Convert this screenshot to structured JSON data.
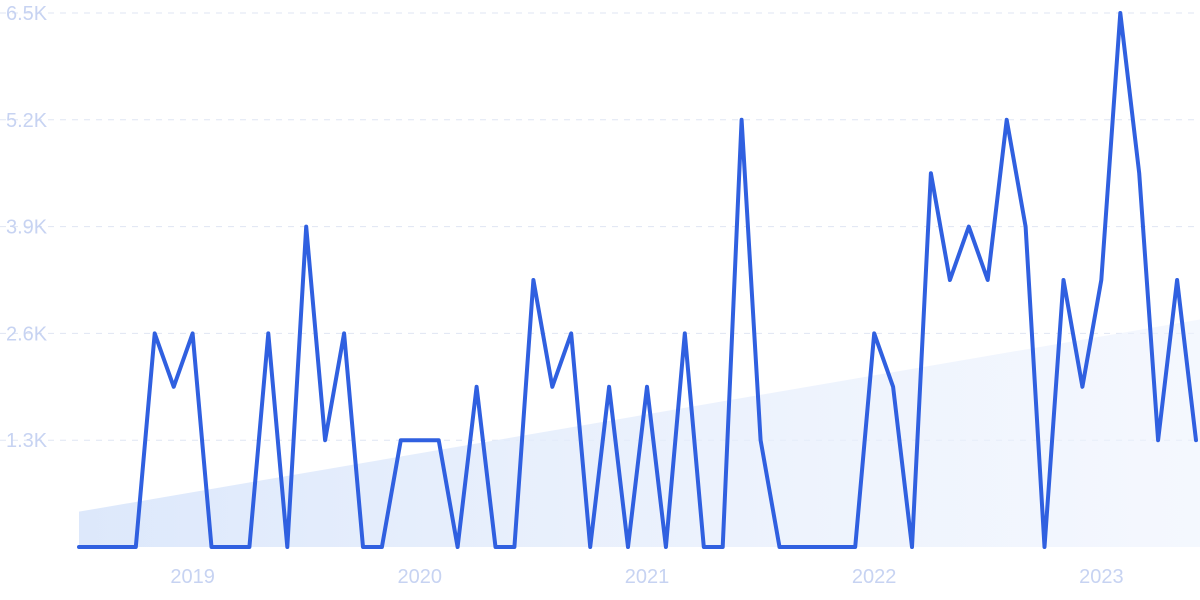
{
  "chart_data": {
    "type": "line",
    "ylim": [
      0,
      6500
    ],
    "yticks": [
      {
        "value": 1300,
        "label": "1.3K"
      },
      {
        "value": 2600,
        "label": "2.6K"
      },
      {
        "value": 3900,
        "label": "3.9K"
      },
      {
        "value": 5200,
        "label": "5.2K"
      },
      {
        "value": 6500,
        "label": "6.5K"
      }
    ],
    "xticks": [
      {
        "value": "2019-01",
        "label": "2019"
      },
      {
        "value": "2020-01",
        "label": "2020"
      },
      {
        "value": "2021-01",
        "label": "2021"
      },
      {
        "value": "2022-01",
        "label": "2022"
      },
      {
        "value": "2023-01",
        "label": "2023"
      }
    ],
    "grid": true,
    "trend": {
      "start": {
        "x": "2018-07",
        "y": 430
      },
      "end": {
        "x": "2023-07",
        "y": 2800
      }
    },
    "series": [
      {
        "color": "#3060e0",
        "points": [
          {
            "x": "2018-07",
            "y": 0
          },
          {
            "x": "2018-08",
            "y": 0
          },
          {
            "x": "2018-09",
            "y": 0
          },
          {
            "x": "2018-10",
            "y": 0
          },
          {
            "x": "2018-11",
            "y": 2600
          },
          {
            "x": "2018-12",
            "y": 1950
          },
          {
            "x": "2019-01",
            "y": 2600
          },
          {
            "x": "2019-02",
            "y": 0
          },
          {
            "x": "2019-03",
            "y": 0
          },
          {
            "x": "2019-04",
            "y": 0
          },
          {
            "x": "2019-05",
            "y": 2600
          },
          {
            "x": "2019-06",
            "y": 0
          },
          {
            "x": "2019-07",
            "y": 3900
          },
          {
            "x": "2019-08",
            "y": 1300
          },
          {
            "x": "2019-09",
            "y": 2600
          },
          {
            "x": "2019-10",
            "y": 0
          },
          {
            "x": "2019-11",
            "y": 0
          },
          {
            "x": "2019-12",
            "y": 1300
          },
          {
            "x": "2020-01",
            "y": 1300
          },
          {
            "x": "2020-02",
            "y": 1300
          },
          {
            "x": "2020-03",
            "y": 0
          },
          {
            "x": "2020-04",
            "y": 1950
          },
          {
            "x": "2020-05",
            "y": 0
          },
          {
            "x": "2020-06",
            "y": 0
          },
          {
            "x": "2020-07",
            "y": 3250
          },
          {
            "x": "2020-08",
            "y": 1950
          },
          {
            "x": "2020-09",
            "y": 2600
          },
          {
            "x": "2020-10",
            "y": 0
          },
          {
            "x": "2020-11",
            "y": 1950
          },
          {
            "x": "2020-12",
            "y": 0
          },
          {
            "x": "2021-01",
            "y": 1950
          },
          {
            "x": "2021-02",
            "y": 0
          },
          {
            "x": "2021-03",
            "y": 2600
          },
          {
            "x": "2021-04",
            "y": 0
          },
          {
            "x": "2021-05",
            "y": 0
          },
          {
            "x": "2021-06",
            "y": 5200
          },
          {
            "x": "2021-07",
            "y": 1300
          },
          {
            "x": "2021-08",
            "y": 0
          },
          {
            "x": "2021-09",
            "y": 0
          },
          {
            "x": "2021-10",
            "y": 0
          },
          {
            "x": "2021-11",
            "y": 0
          },
          {
            "x": "2021-12",
            "y": 0
          },
          {
            "x": "2022-01",
            "y": 2600
          },
          {
            "x": "2022-02",
            "y": 1950
          },
          {
            "x": "2022-03",
            "y": 0
          },
          {
            "x": "2022-04",
            "y": 4550
          },
          {
            "x": "2022-05",
            "y": 3250
          },
          {
            "x": "2022-06",
            "y": 3900
          },
          {
            "x": "2022-07",
            "y": 3250
          },
          {
            "x": "2022-08",
            "y": 5200
          },
          {
            "x": "2022-09",
            "y": 3900
          },
          {
            "x": "2022-10",
            "y": 0
          },
          {
            "x": "2022-11",
            "y": 3250
          },
          {
            "x": "2022-12",
            "y": 1950
          },
          {
            "x": "2023-01",
            "y": 3250
          },
          {
            "x": "2023-02",
            "y": 6500
          },
          {
            "x": "2023-03",
            "y": 4550
          },
          {
            "x": "2023-04",
            "y": 1300
          },
          {
            "x": "2023-05",
            "y": 3250
          },
          {
            "x": "2023-06",
            "y": 1300
          }
        ]
      }
    ]
  }
}
